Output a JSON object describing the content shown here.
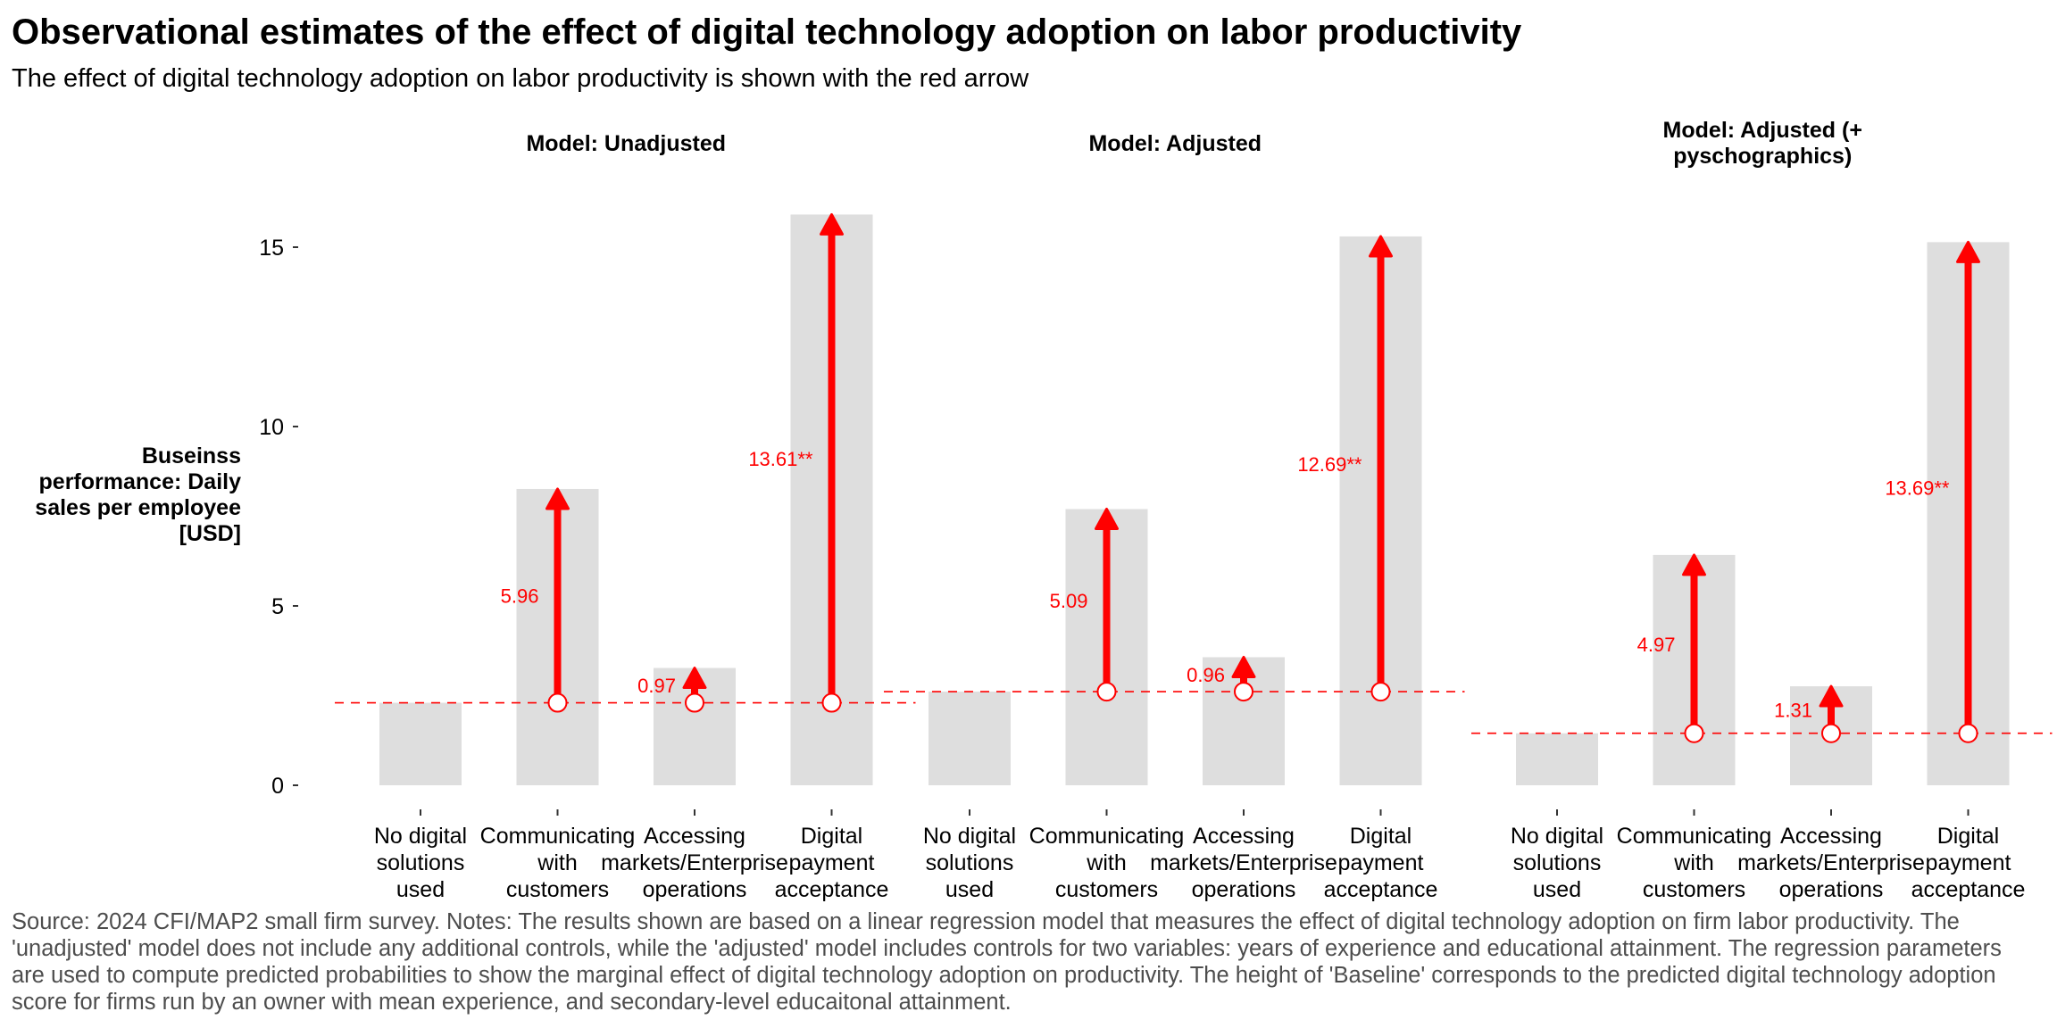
{
  "title": "Observational estimates of the effect of digital technology adoption on labor productivity",
  "subtitle": "The effect of digital technology adoption on labor productivity is shown with the red arrow",
  "caption": "Source: 2024 CFI/MAP2 small firm survey. Notes: The results shown are based on a linear regression model that measures the effect of digital technology adoption on firm labor productivity. The 'unadjusted' model does not include any additional controls, while the 'adjusted' model includes controls for two variables: years of experience and educational attainment. The regression parameters are used to compute predicted probabilities to show the marginal effect of digital technology adoption on productivity. The height of 'Baseline' corresponds to the predicted digital technology adoption score for firms run by an owner with mean experience, and secondary-level educaitonal attainment.",
  "colors": {
    "bar": "#dedede",
    "effect": "#ff0000",
    "baseline_line": "#ff0000",
    "marker_fill": "#ffffff",
    "tick_text": "#000000"
  },
  "chart_data": {
    "type": "bar",
    "ylabel": "Buseinss performance: Daily sales per employee [USD]",
    "ylim": [
      -0.4,
      16.4
    ],
    "yticks": [
      0,
      5,
      10,
      15
    ],
    "grid": false,
    "categories": [
      [
        "No digital",
        "solutions",
        "used"
      ],
      [
        "Communicating",
        "with",
        "customers"
      ],
      [
        "Accessing",
        "markets/Enterprise",
        "operations"
      ],
      [
        "Digital",
        "payment",
        "acceptance"
      ]
    ],
    "panels": [
      {
        "label": [
          "Model: Unadjusted"
        ],
        "baseline": 2.3,
        "values": [
          2.3,
          8.26,
          3.27,
          15.91
        ],
        "effects": [
          null,
          5.96,
          0.97,
          13.61
        ],
        "effect_labels": [
          "",
          "5.96",
          "0.97",
          "13.61**"
        ]
      },
      {
        "label": [
          "Model: Adjusted"
        ],
        "baseline": 2.61,
        "values": [
          2.61,
          7.7,
          3.57,
          15.3
        ],
        "effects": [
          null,
          5.09,
          0.96,
          12.69
        ],
        "effect_labels": [
          "",
          "5.09",
          "0.96",
          "12.69**"
        ]
      },
      {
        "label": [
          "Model: Adjusted (+",
          "pyschographics)"
        ],
        "baseline": 1.45,
        "values": [
          1.45,
          6.42,
          2.76,
          15.14
        ],
        "effects": [
          null,
          4.97,
          1.31,
          13.69
        ],
        "effect_labels": [
          "",
          "4.97",
          "1.31",
          "13.69**"
        ]
      }
    ]
  }
}
